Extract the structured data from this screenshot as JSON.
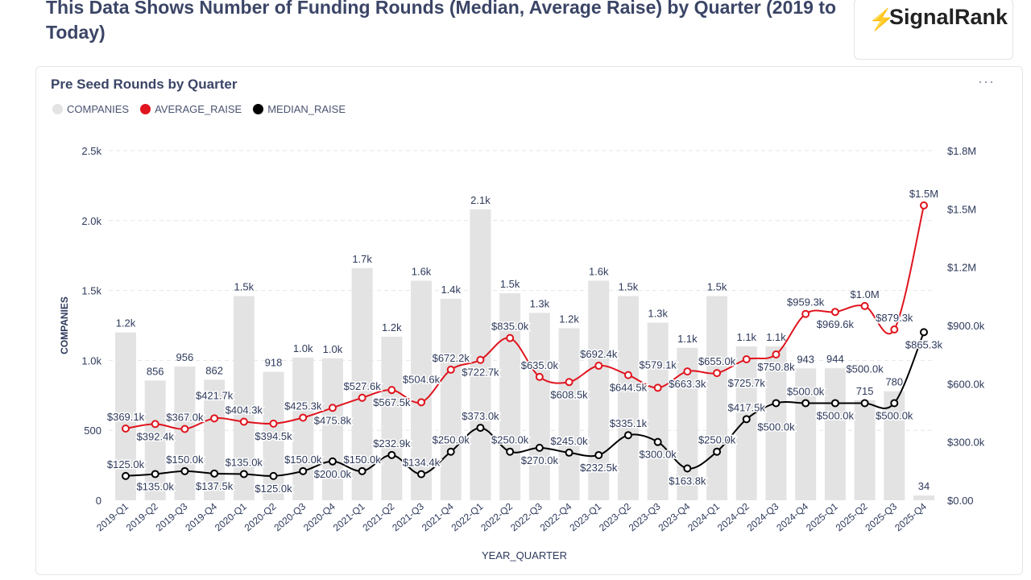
{
  "page_title": "This Data Shows Number of Funding Rounds (Median, Average Raise) by Quarter (2019 to Today)",
  "logo_text": "SignalRank",
  "card": {
    "title": "Pre Seed Rounds by Quarter",
    "menu": "···"
  },
  "chart_data": {
    "type": "bar+line",
    "title": "Pre Seed Rounds by Quarter",
    "xlabel": "YEAR_QUARTER",
    "ylabel": "COMPANIES",
    "ylim": [
      0,
      2500
    ],
    "y2lim": [
      0,
      1800000
    ],
    "left_ticks": [
      "0",
      "500",
      "1.0k",
      "1.5k",
      "2.0k",
      "2.5k"
    ],
    "left_tick_values": [
      0,
      500,
      1000,
      1500,
      2000,
      2500
    ],
    "right_ticks": [
      "$0.00",
      "$300.0k",
      "$600.0k",
      "$900.0k",
      "$1.2M",
      "$1.5M",
      "$1.8M"
    ],
    "right_tick_values": [
      0,
      300000,
      600000,
      900000,
      1200000,
      1500000,
      1800000
    ],
    "grid": true,
    "legend_placement": "top-left",
    "categories": [
      "2019-Q1",
      "2019-Q2",
      "2019-Q3",
      "2019-Q4",
      "2020-Q1",
      "2020-Q2",
      "2020-Q3",
      "2020-Q4",
      "2021-Q1",
      "2021-Q2",
      "2021-Q3",
      "2021-Q4",
      "2022-Q1",
      "2022-Q2",
      "2022-Q3",
      "2022-Q4",
      "2023-Q1",
      "2023-Q2",
      "2023-Q3",
      "2023-Q4",
      "2024-Q1",
      "2024-Q2",
      "2024-Q3",
      "2024-Q4",
      "2025-Q1",
      "2025-Q2",
      "2025-Q3",
      "2025-Q4"
    ],
    "series": [
      {
        "name": "COMPANIES",
        "type": "bar",
        "color": "#e3e3e3",
        "axis": "left",
        "values": [
          1200,
          856,
          956,
          862,
          1460,
          918,
          1020,
          1015,
          1660,
          1170,
          1570,
          1440,
          2080,
          1480,
          1340,
          1230,
          1570,
          1460,
          1270,
          1090,
          1460,
          1100,
          1100,
          943,
          944,
          715,
          780,
          34
        ],
        "labels": [
          "1.2k",
          "856",
          "956",
          "862",
          "1.5k",
          "918",
          "1.0k",
          "1.0k",
          "1.7k",
          "1.2k",
          "1.6k",
          "1.4k",
          "2.1k",
          "1.5k",
          "1.3k",
          "1.2k",
          "1.6k",
          "1.5k",
          "1.3k",
          "1.1k",
          "1.5k",
          "1.1k",
          "1.1k",
          "943",
          "944",
          "715",
          "780",
          "34"
        ]
      },
      {
        "name": "AVERAGE_RAISE",
        "type": "line",
        "color": "#e0141e",
        "axis": "right",
        "values": [
          369100,
          392400,
          367000,
          421700,
          404300,
          394500,
          425300,
          475800,
          527600,
          567500,
          504600,
          672200,
          722700,
          835000,
          635000,
          608500,
          692400,
          644500,
          579100,
          663300,
          655000,
          725700,
          750800,
          959300,
          969600,
          1000000,
          879300,
          1518000
        ],
        "labels": [
          "$369.1k",
          "$392.4k",
          "$367.0k",
          "$421.7k",
          "$404.3k",
          "$394.5k",
          "$425.3k",
          "$475.8k",
          "$527.6k",
          "$567.5k",
          "$504.6k",
          "$672.2k",
          "$722.7k",
          "$835.0k",
          "$635.0k",
          "$608.5k",
          "$692.4k",
          "$644.5k",
          "$579.1k",
          "$663.3k",
          "$655.0k",
          "$725.7k",
          "$750.8k",
          "$959.3k",
          "$969.6k",
          "$1.0M",
          "$879.3k",
          "$1.5M"
        ]
      },
      {
        "name": "MEDIAN_RAISE",
        "type": "line",
        "color": "#000000",
        "axis": "right",
        "values": [
          125000,
          135000,
          150000,
          137500,
          135000,
          125000,
          150000,
          200000,
          150000,
          232900,
          134400,
          250000,
          373000,
          250000,
          270000,
          245000,
          232500,
          335100,
          300000,
          163800,
          250000,
          417500,
          500000,
          500000,
          500000,
          500000,
          500000,
          865300
        ],
        "labels": [
          "$125.0k",
          "$135.0k",
          "$150.0k",
          "$137.5k",
          "$135.0k",
          "$125.0k",
          "$150.0k",
          "$200.0k",
          "$150.0k",
          "$232.9k",
          "$134.4k",
          "$250.0k",
          "$373.0k",
          "$250.0k",
          "$270.0k",
          "$245.0k",
          "$232.5k",
          "$335.1k",
          "$300.0k",
          "$163.8k",
          "$250.0k",
          "$417.5k",
          "$500.0k",
          "$500.0k",
          "$500.0k",
          "$500.0k",
          "$500.0k",
          "$865.3k"
        ]
      }
    ]
  }
}
